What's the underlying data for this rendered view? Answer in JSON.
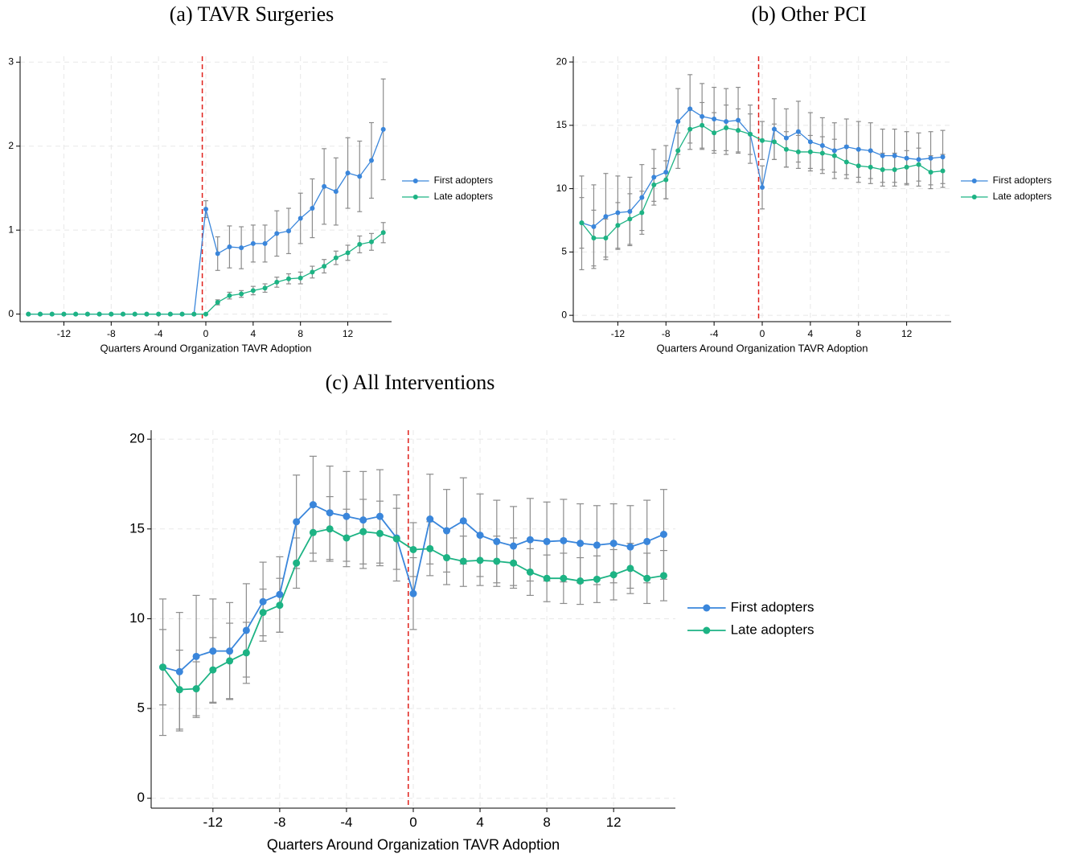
{
  "chart_data": [
    {
      "type": "line",
      "title": "(a) TAVR Surgeries",
      "xlabel": "Quarters Around Organization TAVR Adoption",
      "x": [
        -15,
        -14,
        -13,
        -12,
        -11,
        -10,
        -9,
        -8,
        -7,
        -6,
        -5,
        -4,
        -3,
        -2,
        -1,
        0,
        1,
        2,
        3,
        4,
        5,
        6,
        7,
        8,
        9,
        10,
        11,
        12,
        13,
        14,
        15
      ],
      "series": [
        {
          "name": "First adopters",
          "color": "#3a86db",
          "values": [
            0,
            0,
            0,
            0,
            0,
            0,
            0,
            0,
            0,
            0,
            0,
            0,
            0,
            0,
            0,
            1.25,
            0.72,
            0.8,
            0.79,
            0.84,
            0.84,
            0.96,
            0.99,
            1.14,
            1.26,
            1.52,
            1.46,
            1.68,
            1.64,
            1.83,
            2.2
          ],
          "errors": [
            0,
            0,
            0,
            0,
            0,
            0,
            0,
            0,
            0,
            0,
            0,
            0,
            0,
            0,
            0,
            0.1,
            0.2,
            0.25,
            0.25,
            0.22,
            0.22,
            0.27,
            0.27,
            0.3,
            0.35,
            0.45,
            0.4,
            0.42,
            0.42,
            0.45,
            0.6
          ]
        },
        {
          "name": "Late adopters",
          "color": "#1db384",
          "values": [
            0,
            0,
            0,
            0,
            0,
            0,
            0,
            0,
            0,
            0,
            0,
            0,
            0,
            0,
            0,
            0,
            0.14,
            0.22,
            0.24,
            0.28,
            0.31,
            0.38,
            0.42,
            0.43,
            0.5,
            0.57,
            0.67,
            0.73,
            0.83,
            0.86,
            0.97
          ],
          "errors": [
            0,
            0,
            0,
            0,
            0,
            0,
            0,
            0,
            0,
            0,
            0,
            0,
            0,
            0,
            0,
            0,
            0.03,
            0.04,
            0.04,
            0.05,
            0.05,
            0.06,
            0.06,
            0.07,
            0.07,
            0.08,
            0.08,
            0.09,
            0.1,
            0.1,
            0.12
          ]
        }
      ],
      "xlim": [
        -15.7,
        15.7
      ],
      "xticks": [
        -12,
        -8,
        -4,
        0,
        4,
        8,
        12
      ],
      "ylim": [
        -0.09,
        3.07
      ],
      "yticks": [
        0,
        1,
        2,
        3
      ],
      "vline": -0.3,
      "vline_color": "#e0201b",
      "grid": true,
      "legend": "right"
    },
    {
      "type": "line",
      "title": "(b) Other PCI",
      "xlabel": "Quarters Around Organization TAVR Adoption",
      "x": [
        -15,
        -14,
        -13,
        -12,
        -11,
        -10,
        -9,
        -8,
        -7,
        -6,
        -5,
        -4,
        -3,
        -2,
        -1,
        0,
        1,
        2,
        3,
        4,
        5,
        6,
        7,
        8,
        9,
        10,
        11,
        12,
        13,
        14,
        15
      ],
      "series": [
        {
          "name": "First adopters",
          "color": "#3a86db",
          "values": [
            7.3,
            7.0,
            7.8,
            8.1,
            8.2,
            9.3,
            10.9,
            11.3,
            15.3,
            16.3,
            15.7,
            15.5,
            15.3,
            15.4,
            14.3,
            10.1,
            14.7,
            14.0,
            14.5,
            13.7,
            13.4,
            13.0,
            13.3,
            13.1,
            13.0,
            12.6,
            12.6,
            12.4,
            12.3,
            12.4,
            12.5
          ],
          "errors": [
            3.7,
            3.3,
            3.4,
            2.9,
            2.7,
            2.6,
            2.2,
            2.1,
            2.6,
            2.7,
            2.6,
            2.5,
            2.6,
            2.6,
            2.3,
            1.7,
            2.4,
            2.3,
            2.4,
            2.3,
            2.2,
            2.2,
            2.2,
            2.2,
            2.2,
            2.1,
            2.1,
            2.1,
            2.1,
            2.1,
            2.1
          ]
        },
        {
          "name": "Late adopters",
          "color": "#1db384",
          "values": [
            7.3,
            6.1,
            6.1,
            7.1,
            7.6,
            8.1,
            10.3,
            10.7,
            13.0,
            14.7,
            15.0,
            14.4,
            14.8,
            14.6,
            14.3,
            13.8,
            13.7,
            13.1,
            12.9,
            12.9,
            12.8,
            12.6,
            12.1,
            11.8,
            11.7,
            11.5,
            11.5,
            11.7,
            11.9,
            11.3,
            11.4
          ],
          "errors": [
            2.0,
            2.2,
            1.5,
            1.8,
            2.0,
            1.7,
            1.3,
            1.5,
            1.4,
            1.6,
            1.8,
            1.6,
            1.8,
            1.7,
            1.6,
            1.5,
            1.4,
            1.4,
            1.3,
            1.3,
            1.3,
            1.3,
            1.3,
            1.3,
            1.3,
            1.3,
            1.3,
            1.3,
            1.3,
            1.3,
            1.3
          ]
        }
      ],
      "xlim": [
        -15.7,
        15.7
      ],
      "xticks": [
        -12,
        -8,
        -4,
        0,
        4,
        8,
        12
      ],
      "ylim": [
        -0.5,
        20.45
      ],
      "yticks": [
        0,
        5,
        10,
        15,
        20
      ],
      "vline": -0.3,
      "vline_color": "#e0201b",
      "grid": true,
      "legend": "right"
    },
    {
      "type": "line",
      "title": "(c) All Interventions",
      "xlabel": "Quarters Around Organization TAVR Adoption",
      "x": [
        -15,
        -14,
        -13,
        -12,
        -11,
        -10,
        -9,
        -8,
        -7,
        -6,
        -5,
        -4,
        -3,
        -2,
        -1,
        0,
        1,
        2,
        3,
        4,
        5,
        6,
        7,
        8,
        9,
        10,
        11,
        12,
        13,
        14,
        15
      ],
      "series": [
        {
          "name": "First adopters",
          "color": "#3a86db",
          "values": [
            7.3,
            7.05,
            7.9,
            8.2,
            8.2,
            9.35,
            10.95,
            11.35,
            15.4,
            16.35,
            15.9,
            15.7,
            15.5,
            15.7,
            14.5,
            11.4,
            15.55,
            14.9,
            15.45,
            14.65,
            14.3,
            14.05,
            14.4,
            14.3,
            14.35,
            14.2,
            14.1,
            14.2,
            14.0,
            14.3,
            14.7
          ],
          "errors": [
            3.8,
            3.3,
            3.4,
            2.9,
            2.7,
            2.6,
            2.2,
            2.1,
            2.6,
            2.7,
            2.6,
            2.5,
            2.7,
            2.6,
            2.4,
            2.0,
            2.5,
            2.3,
            2.4,
            2.3,
            2.3,
            2.2,
            2.3,
            2.2,
            2.3,
            2.2,
            2.2,
            2.2,
            2.3,
            2.3,
            2.5
          ]
        },
        {
          "name": "Late adopters",
          "color": "#1db384",
          "values": [
            7.3,
            6.05,
            6.1,
            7.15,
            7.65,
            8.1,
            10.35,
            10.75,
            13.1,
            14.8,
            15.0,
            14.5,
            14.85,
            14.75,
            14.45,
            13.85,
            13.9,
            13.4,
            13.2,
            13.25,
            13.2,
            13.1,
            12.6,
            12.25,
            12.25,
            12.1,
            12.2,
            12.45,
            12.8,
            12.25,
            12.4
          ],
          "errors": [
            2.1,
            2.2,
            1.5,
            1.8,
            2.1,
            1.7,
            1.3,
            1.5,
            1.4,
            1.6,
            1.8,
            1.6,
            1.8,
            1.8,
            1.7,
            1.5,
            1.5,
            1.5,
            1.4,
            1.4,
            1.4,
            1.4,
            1.3,
            1.3,
            1.4,
            1.3,
            1.3,
            1.4,
            1.4,
            1.4,
            1.4
          ]
        }
      ],
      "xlim": [
        -15.7,
        15.7
      ],
      "xticks": [
        -12,
        -8,
        -4,
        0,
        4,
        8,
        12
      ],
      "ylim": [
        -0.55,
        20.5
      ],
      "yticks": [
        0,
        5,
        10,
        15,
        20
      ],
      "vline": -0.3,
      "vline_color": "#e0201b",
      "grid": true,
      "legend": "right"
    }
  ]
}
